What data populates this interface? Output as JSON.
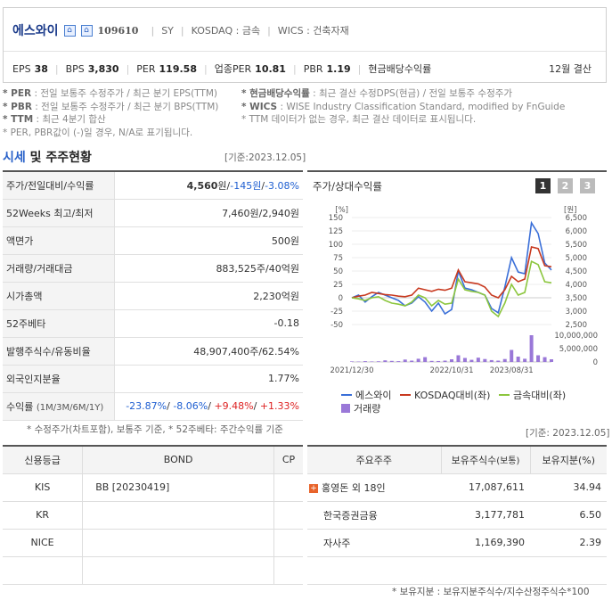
{
  "header": {
    "name": "에스와이",
    "code": "109610",
    "ticker": "SY",
    "market": "KOSDAQ : 금속",
    "wics": "WICS : 건축자재",
    "stats": [
      {
        "label": "EPS",
        "value": "38"
      },
      {
        "label": "BPS",
        "value": "3,830"
      },
      {
        "label": "PER",
        "value": "119.58"
      },
      {
        "label": "업종PER",
        "value": "10.81"
      },
      {
        "label": "PBR",
        "value": "1.19"
      },
      {
        "label": "현금배당수익률",
        "value": ""
      }
    ],
    "settlement": "12월 결산"
  },
  "notes": {
    "n1a_b": "* PER",
    "n1a": ": 전일 보통주 수정주가 / 최근 분기 EPS(TTM)",
    "n1b_b": "* 현금배당수익률",
    "n1b": ": 최근 결산 수정DPS(현금) / 전일 보통주 수정주가",
    "n2a_b": "* PBR",
    "n2a": ": 전일 보통주 수정주가 / 최근 분기 BPS(TTM)",
    "n2b_b": "* WICS",
    "n2b": ": WISE Industry Classification Standard, modified by FnGuide",
    "n3a_b": "* TTM",
    "n3a": ": 최근 4분기 합산",
    "n3b": "* TTM 데이터가 없는 경우, 최근 결산 데이터로 표시됩니다.",
    "n4": "* PER, PBR값이 (-)일 경우, N/A로 표기됩니다."
  },
  "section": {
    "title_blue": "시세",
    "title_rest": " 및 주주현황",
    "date": "[기준:2023.12.05]"
  },
  "price_table": {
    "rows": [
      {
        "label": "주가/전일대비/수익률",
        "v1": "4,560",
        "u1": "원",
        "v2": "-145",
        "u2": "원",
        "v3": "-3.08%"
      },
      {
        "label": "52Weeks 최고/최저",
        "value": "7,460원/2,940원"
      },
      {
        "label": "액면가",
        "value": "500원"
      },
      {
        "label": "거래량/거래대금",
        "value": "883,525주/40억원"
      },
      {
        "label": "시가총액",
        "value": "2,230억원"
      },
      {
        "label": "52주베타",
        "value": "-0.18"
      },
      {
        "label": "발행주식수/유동비율",
        "value": "48,907,400주/62.54%"
      },
      {
        "label": "외국인지분율",
        "value": "1.77%"
      },
      {
        "label": "수익률",
        "label_small": "(1M/3M/6M/1Y)",
        "r1": "-23.87%",
        "r2": "-8.06%",
        "r3": "+9.48%",
        "r4": "+1.33%"
      }
    ],
    "note": "* 수정주가(차트포함), 보통주 기준, * 52주베타: 주간수익률 기준"
  },
  "chart_panel": {
    "title": "주가/상대수익률",
    "buttons": [
      "1",
      "2",
      "3"
    ],
    "legend": {
      "s1": "에스와이",
      "s2": "KOSDAQ대비(좌)",
      "s3": "금속대비(좌)",
      "s4": "거래량"
    },
    "colors": {
      "s1": "#3a6fd8",
      "s2": "#c8391f",
      "s3": "#8cc63e",
      "vol": "#9a78d8"
    }
  },
  "chart_data": {
    "type": "line",
    "left_unit": "[%]",
    "right_unit": "[원]",
    "left_ticks": [
      "150",
      "125",
      "100",
      "75",
      "50",
      "25",
      "0",
      "-25",
      "-50"
    ],
    "right_ticks": [
      "6,500",
      "6,000",
      "5,500",
      "5,000",
      "4,500",
      "4,000",
      "3,500",
      "3,000",
      "2,500"
    ],
    "vol_ticks": [
      "10,000,000",
      "5,000,000",
      "0"
    ],
    "x_labels": [
      "2021/12/30",
      "2022/10/31",
      "2023/08/31"
    ],
    "ylim": [
      -50,
      150
    ],
    "right_ylim": [
      2500,
      6500
    ],
    "vol_ylim": [
      0,
      10000000
    ],
    "series": [
      {
        "name": "에스와이",
        "values": [
          0,
          5,
          -8,
          2,
          10,
          5,
          0,
          -5,
          -15,
          -10,
          2,
          -8,
          -25,
          -10,
          -30,
          -22,
          50,
          18,
          15,
          10,
          5,
          -20,
          -28,
          20,
          75,
          48,
          45,
          140,
          120,
          65,
          52
        ]
      },
      {
        "name": "KOSDAQ대비(좌)",
        "values": [
          0,
          3,
          5,
          10,
          8,
          6,
          5,
          3,
          2,
          5,
          18,
          15,
          12,
          16,
          14,
          18,
          52,
          30,
          28,
          26,
          20,
          5,
          0,
          15,
          40,
          30,
          35,
          95,
          92,
          60,
          58
        ]
      },
      {
        "name": "금속대비(좌)",
        "values": [
          0,
          -2,
          -5,
          0,
          2,
          -5,
          -10,
          -12,
          -15,
          -8,
          5,
          0,
          -15,
          -5,
          -12,
          -10,
          35,
          15,
          12,
          10,
          5,
          -25,
          -35,
          -10,
          25,
          5,
          10,
          68,
          62,
          30,
          28
        ]
      }
    ],
    "volume": [
      200000,
      150000,
      300000,
      180000,
      250000,
      600000,
      400000,
      300000,
      900000,
      500000,
      1200000,
      1800000,
      400000,
      350000,
      500000,
      1000000,
      2500000,
      1500000,
      800000,
      1600000,
      1100000,
      700000,
      500000,
      1100000,
      4500000,
      2000000,
      1200000,
      10000000,
      2500000,
      1800000,
      1000000
    ]
  },
  "credit": {
    "headers": [
      "신용등급",
      "BOND",
      "CP"
    ],
    "rows": [
      {
        "agency": "KIS",
        "bond": "BB   [20230419]",
        "cp": ""
      },
      {
        "agency": "KR",
        "bond": "",
        "cp": ""
      },
      {
        "agency": "NICE",
        "bond": "",
        "cp": ""
      },
      {
        "agency": "",
        "bond": "",
        "cp": ""
      }
    ]
  },
  "holders": {
    "date": "[기준: 2023.12.05]",
    "headers": [
      "주요주주",
      "보유주식수",
      "(보통)",
      "보유지분(%)"
    ],
    "rows": [
      {
        "name": "홍영돈 외 18인",
        "shares": "17,087,611",
        "pct": "34.94",
        "plus": "+"
      },
      {
        "name": "한국증권금융",
        "shares": "3,177,781",
        "pct": "6.50"
      },
      {
        "name": "자사주",
        "shares": "1,169,390",
        "pct": "2.39"
      },
      {
        "name": "",
        "shares": "",
        "pct": ""
      }
    ],
    "note": "* 보유지분 : 보유지분주식수/지수산정주식수*100"
  }
}
